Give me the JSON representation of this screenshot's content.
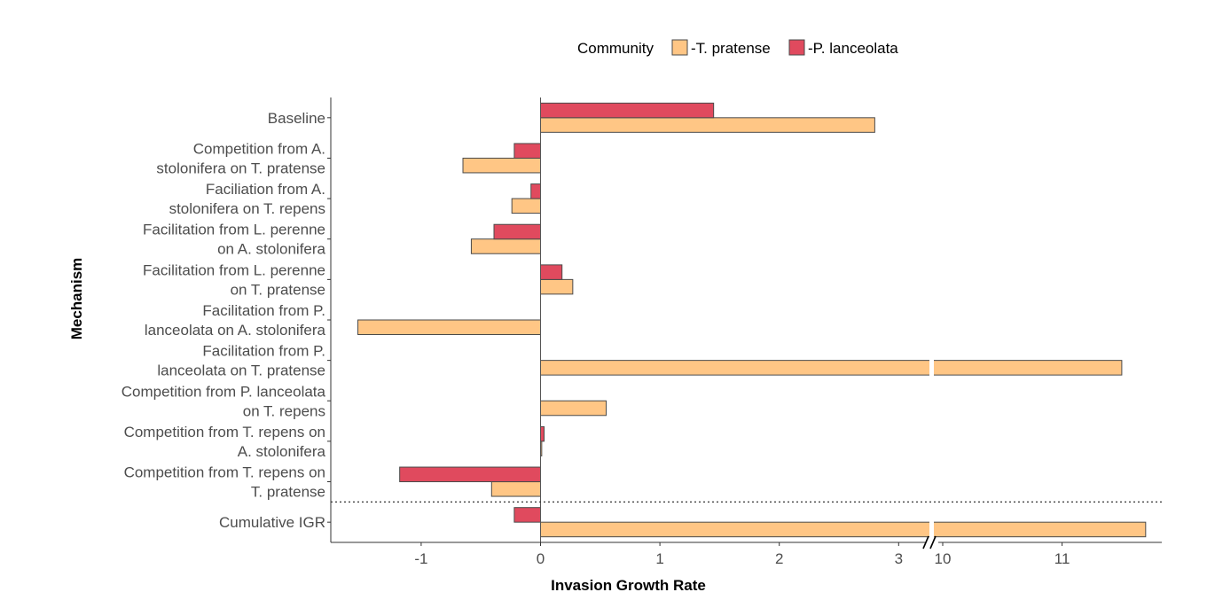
{
  "chart_data": {
    "type": "bar",
    "orientation": "horizontal",
    "xlabel": "Invasion Growth Rate",
    "ylabel": "Mechanism",
    "legend": {
      "title": "Community",
      "placement": "top"
    },
    "axis_break": {
      "from": 3.3,
      "to": 9.7
    },
    "x_ticks": [
      -1,
      0,
      1,
      2,
      3,
      10,
      11
    ],
    "categories": [
      [
        "Baseline"
      ],
      [
        "Competition from A.",
        "stolonifera on T. pratense"
      ],
      [
        "Faciliation from A.",
        "stolonifera on T. repens"
      ],
      [
        "Facilitation from L. perenne",
        "on A. stolonifera"
      ],
      [
        "Facilitation from L. perenne",
        "on T. pratense"
      ],
      [
        "Facilitation from P.",
        "lanceolata on A. stolonifera"
      ],
      [
        "Facilitation from P.",
        "lanceolata on T. pratense"
      ],
      [
        "Competition from P. lanceolata",
        "on T. repens"
      ],
      [
        "Competition from T. repens on",
        "A. stolonifera"
      ],
      [
        "Competition from T. repens on",
        "T. pratense"
      ],
      [
        "Cumulative IGR"
      ]
    ],
    "separator_after_index": 9,
    "series": [
      {
        "name": "-T. pratense",
        "color": "#FFC685",
        "values": [
          2.8,
          -0.65,
          -0.24,
          -0.58,
          0.27,
          -1.53,
          11.5,
          0.55,
          0.01,
          -0.41,
          11.7
        ]
      },
      {
        "name": "-P. lanceolata",
        "color": "#E04A5E",
        "values": [
          1.45,
          -0.22,
          -0.08,
          -0.39,
          0.18,
          0.0,
          0.0,
          0.0,
          0.03,
          -1.18,
          -0.22
        ]
      }
    ]
  }
}
